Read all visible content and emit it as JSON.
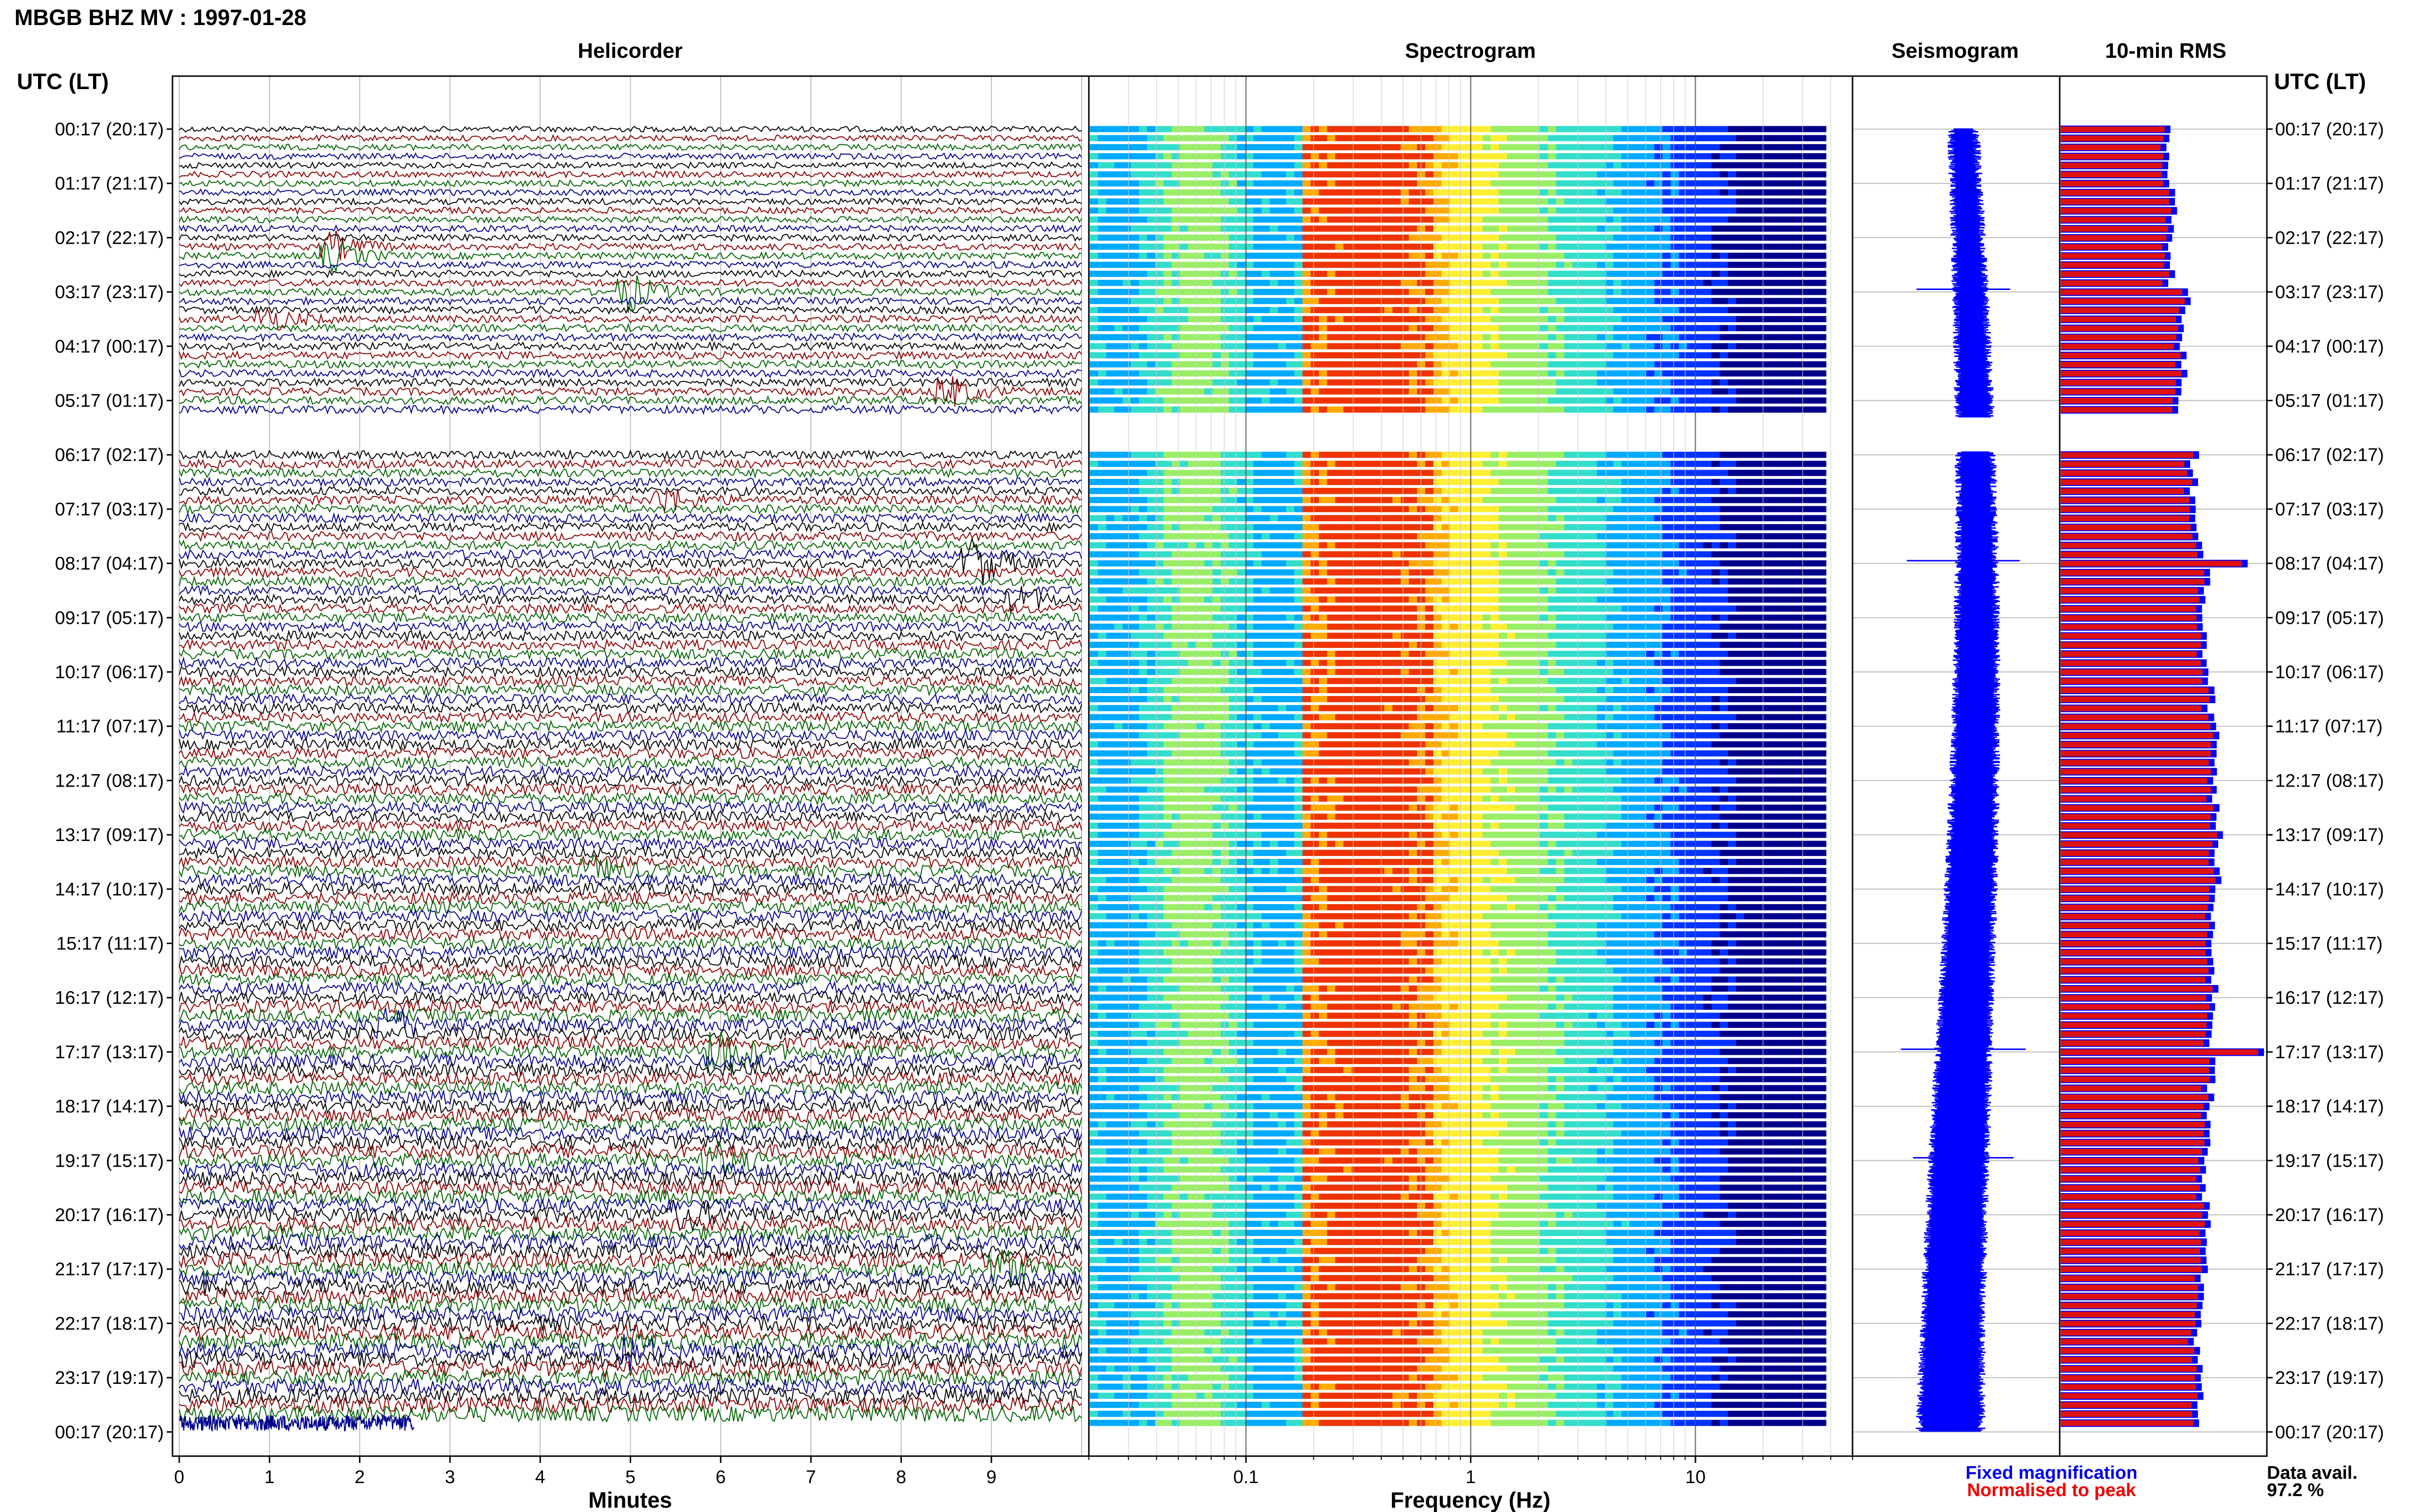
{
  "header": {
    "title": "MBGB BHZ MV : 1997-01-28"
  },
  "panels": {
    "helicorder": "Helicorder",
    "spectrogram": "Spectrogram",
    "seismogram": "Seismogram",
    "rms": "10-min RMS"
  },
  "axes": {
    "time_header": "UTC (LT)",
    "minutes_label": "Minutes",
    "frequency_label": "Frequency (Hz)"
  },
  "legend": {
    "fixed": "Fixed magnification",
    "normalised": "Normalised to peak",
    "fixed_color": "#0000ee",
    "normalised_color": "#ee0000"
  },
  "data_avail": {
    "label": "Data avail.",
    "value": "97.2 %"
  },
  "colors": {
    "trace": [
      "#000000",
      "#8b0000",
      "#006400",
      "#00008b"
    ],
    "seismogram": "#0000ff",
    "rms_fill": "#dd1111",
    "rms_outline": "#0000ff"
  },
  "chart_data": [
    {
      "type": "line",
      "title": "Helicorder",
      "xlabel": "Minutes",
      "x_ticks": [
        0,
        1,
        2,
        3,
        4,
        5,
        6,
        7,
        8,
        9
      ],
      "xlim": [
        0,
        10
      ],
      "y_tick_labels": [
        "00:17 (20:17)",
        "01:17 (21:17)",
        "02:17 (22:17)",
        "03:17 (23:17)",
        "04:17 (00:17)",
        "05:17 (01:17)",
        "06:17 (02:17)",
        "07:17 (03:17)",
        "08:17 (04:17)",
        "09:17 (05:17)",
        "10:17 (06:17)",
        "11:17 (07:17)",
        "12:17 (08:17)",
        "13:17 (09:17)",
        "14:17 (10:17)",
        "15:17 (11:17)",
        "16:17 (12:17)",
        "17:17 (13:17)",
        "18:17 (14:17)",
        "19:17 (15:17)",
        "20:17 (16:17)",
        "21:17 (17:17)",
        "22:17 (18:17)",
        "23:17 (19:17)",
        "00:17 (20:17)"
      ],
      "rows_per_hour": 6,
      "data_gap_hours": [
        5.3,
        5.95
      ],
      "events": [
        {
          "hour": 2.25,
          "minute": 1.7,
          "amp": 1.2
        },
        {
          "hour": 2.95,
          "minute": 5.0,
          "amp": 1.6
        },
        {
          "hour": 3.45,
          "minute": 1.0,
          "amp": 1.0
        },
        {
          "hour": 4.85,
          "minute": 8.5,
          "amp": 1.4
        },
        {
          "hour": 6.85,
          "minute": 5.4,
          "amp": 1.0
        },
        {
          "hour": 7.95,
          "minute": 8.8,
          "amp": 2.2
        },
        {
          "hour": 8.65,
          "minute": 9.3,
          "amp": 1.0
        },
        {
          "hour": 13.65,
          "minute": 4.6,
          "amp": 1.0
        },
        {
          "hour": 16.45,
          "minute": 2.3,
          "amp": 1.5
        },
        {
          "hour": 16.95,
          "minute": 6.0,
          "amp": 2.4
        },
        {
          "hour": 18.95,
          "minute": 5.9,
          "amp": 1.4
        },
        {
          "hour": 19.95,
          "minute": 5.6,
          "amp": 1.2
        },
        {
          "hour": 20.95,
          "minute": 9.1,
          "amp": 1.4
        },
        {
          "hour": 22.45,
          "minute": 5.0,
          "amp": 1.0
        }
      ]
    },
    {
      "type": "heatmap",
      "title": "Spectrogram",
      "xlabel": "Frequency (Hz)",
      "x_scale": "log",
      "xlim": [
        0.02,
        50
      ],
      "x_ticks": [
        0.1,
        1,
        10
      ],
      "x_tick_labels": [
        "0.1",
        "1",
        "10"
      ],
      "rows": 144,
      "peak_band_hz": [
        0.2,
        0.6
      ],
      "colormap": [
        "#00008b",
        "#0033ff",
        "#00aaff",
        "#33ddcc",
        "#99ee66",
        "#ffee33",
        "#ffaa00",
        "#ee3300"
      ]
    },
    {
      "type": "line",
      "title": "Seismogram",
      "rows": 144,
      "spikes_at_hours": [
        2.95,
        7.95,
        16.95,
        18.95
      ]
    },
    {
      "type": "bar",
      "title": "10-min RMS",
      "orientation": "horizontal",
      "series": [
        {
          "name": "Fixed magnification"
        },
        {
          "name": "Normalised to peak"
        }
      ],
      "hourly_relative_rms": [
        0.52,
        0.55,
        0.54,
        0.62,
        0.6,
        0.6,
        0.66,
        0.68,
        0.72,
        0.72,
        0.74,
        0.76,
        0.76,
        0.78,
        0.76,
        0.76,
        0.74,
        0.74,
        0.72,
        0.72,
        0.72,
        0.7,
        0.68,
        0.68
      ],
      "peaks": [
        {
          "hour": 7.95,
          "value": 0.92
        },
        {
          "hour": 16.95,
          "value": 1.0
        }
      ]
    }
  ]
}
